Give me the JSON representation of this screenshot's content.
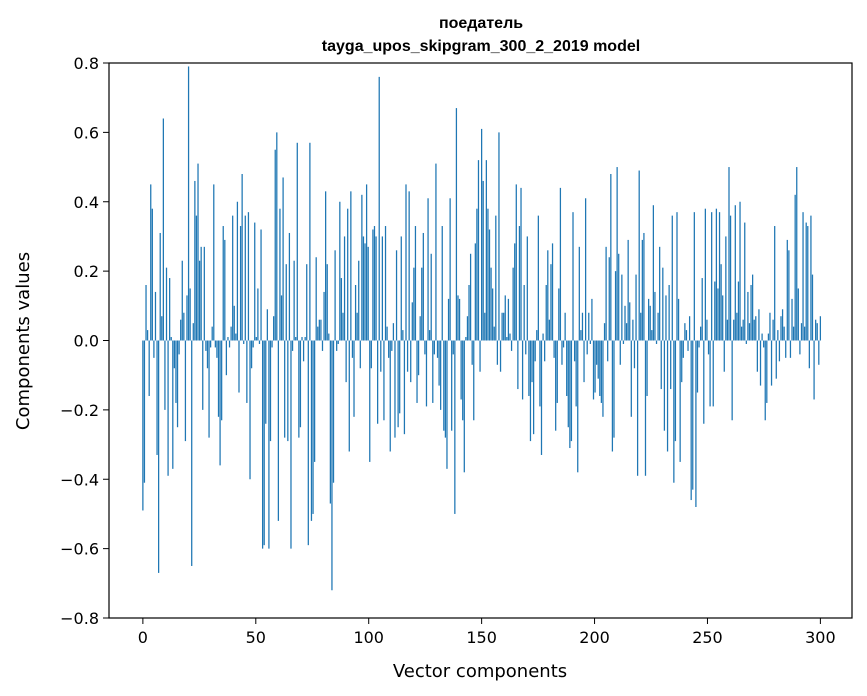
{
  "chart_data": {
    "type": "bar",
    "title": "поедатель",
    "subtitle": "tayga_upos_skipgram_300_2_2019 model",
    "xlabel": "Vector components",
    "ylabel": "Components values",
    "xlim": [
      -15,
      314
    ],
    "ylim": [
      -0.8,
      0.8
    ],
    "x_ticks": [
      0,
      50,
      100,
      150,
      200,
      250,
      300
    ],
    "x_tick_labels": [
      "0",
      "50",
      "100",
      "150",
      "200",
      "250",
      "300"
    ],
    "y_ticks": [
      -0.8,
      -0.6,
      -0.4,
      -0.2,
      0.0,
      0.2,
      0.4,
      0.6,
      0.8
    ],
    "y_tick_labels": [
      "−0.8",
      "−0.6",
      "−0.4",
      "−0.2",
      "0.0",
      "0.2",
      "0.4",
      "0.6",
      "0.8"
    ],
    "bar_color": "#1f77b4",
    "grid": false,
    "values": [
      -0.49,
      -0.41,
      0.16,
      0.03,
      -0.16,
      0.45,
      0.38,
      -0.05,
      0.14,
      -0.33,
      -0.67,
      0.31,
      0.07,
      0.64,
      -0.2,
      0.21,
      -0.39,
      0.18,
      0.01,
      -0.37,
      -0.08,
      -0.18,
      -0.25,
      -0.04,
      0.06,
      0.23,
      0.08,
      -0.29,
      0.13,
      0.79,
      0.15,
      -0.65,
      0.05,
      0.46,
      0.36,
      0.51,
      0.23,
      0.27,
      -0.2,
      0.27,
      -0.03,
      -0.08,
      -0.28,
      -0.02,
      0.04,
      0.45,
      -0.02,
      -0.05,
      -0.22,
      -0.36,
      -0.23,
      0.33,
      0.29,
      -0.1,
      0.01,
      -0.02,
      0.04,
      0.36,
      0.1,
      0.02,
      0.4,
      -0.15,
      0.33,
      0.48,
      -0.01,
      0.36,
      -0.18,
      0.37,
      -0.4,
      -0.08,
      -0.02,
      0.34,
      0.01,
      0.15,
      -0.01,
      0.32,
      -0.6,
      -0.59,
      -0.24,
      0.09,
      -0.6,
      -0.29,
      -0.02,
      0.07,
      0.55,
      0.6,
      -0.52,
      0.38,
      0.13,
      0.47,
      -0.28,
      0.22,
      -0.29,
      0.31,
      -0.6,
      -0.03,
      0.23,
      0.01,
      0.57,
      -0.28,
      -0.25,
      0.01,
      -0.06,
      0.01,
      0.22,
      -0.59,
      0.57,
      -0.52,
      -0.5,
      -0.35,
      0.24,
      0.04,
      0.06,
      0.06,
      -0.03,
      0.14,
      0.43,
      0.22,
      0.02,
      -0.47,
      -0.72,
      -0.41,
      0.26,
      -0.03,
      -0.01,
      0.4,
      0.18,
      0.08,
      0.3,
      -0.12,
      0.38,
      -0.32,
      0.43,
      -0.05,
      -0.22,
      0.16,
      0.08,
      0.23,
      -0.08,
      0.42,
      0.3,
      0.28,
      0.45,
      0.27,
      -0.35,
      -0.08,
      0.32,
      0.33,
      0.3,
      -0.24,
      0.76,
      -0.09,
      0.3,
      -0.23,
      0.33,
      0.04,
      -0.05,
      -0.32,
      -0.03,
      0.05,
      -0.28,
      0.26,
      -0.25,
      -0.21,
      0.3,
      0.03,
      -0.27,
      0.45,
      -0.09,
      0.43,
      -0.12,
      0.11,
      0.21,
      0.33,
      -0.18,
      -0.1,
      0.07,
      0.21,
      0.31,
      -0.04,
      -0.19,
      0.41,
      0.03,
      0.25,
      -0.18,
      -0.04,
      0.51,
      -0.05,
      -0.13,
      -0.2,
      0.33,
      -0.26,
      -0.28,
      -0.37,
      0.12,
      0.41,
      -0.26,
      -0.04,
      -0.5,
      0.67,
      0.13,
      0.12,
      -0.17,
      -0.23,
      -0.38,
      0.01,
      0.07,
      0.16,
      0.25,
      -0.07,
      -0.23,
      0.28,
      0.38,
      0.52,
      -0.09,
      0.61,
      0.46,
      0.08,
      0.52,
      0.38,
      0.32,
      0.21,
      0.15,
      0.04,
      0.36,
      -0.07,
      0.6,
      -0.09,
      0.08,
      0.08,
      0.13,
      0.01,
      0.12,
      0.02,
      -0.03,
      0.21,
      0.28,
      0.45,
      -0.14,
      0.33,
      0.44,
      -0.17,
      0.16,
      -0.04,
      0.3,
      -0.16,
      -0.29,
      -0.12,
      -0.27,
      -0.06,
      0.03,
      0.36,
      -0.19,
      -0.33,
      0.02,
      -0.06,
      0.16,
      0.26,
      0.06,
      0.22,
      0.28,
      -0.05,
      -0.26,
      -0.18,
      0.15,
      0.44,
      -0.07,
      -0.02,
      0.08,
      -0.16,
      -0.25,
      -0.31,
      -0.29,
      0.37,
      -0.06,
      -0.19,
      -0.38,
      0.27,
      0.03,
      0.08,
      -0.12,
      0.41,
      -0.04,
      0.08,
      -0.01,
      0.12,
      -0.17,
      -0.15,
      -0.07,
      -0.11,
      -0.16,
      -0.18,
      -0.22,
      0.05,
      0.27,
      -0.06,
      0.24,
      0.48,
      -0.32,
      -0.28,
      0.2,
      0.5,
      0.25,
      -0.07,
      0.19,
      -0.01,
      0.1,
      0.05,
      0.29,
      0.11,
      -0.22,
      0.06,
      -0.08,
      0.19,
      -0.39,
      0.49,
      0.08,
      0.29,
      0.31,
      -0.39,
      -0.16,
      0.12,
      0.1,
      0.03,
      0.39,
      0.14,
      -0.01,
      0.08,
      0.27,
      -0.14,
      0.21,
      -0.26,
      0.13,
      -0.32,
      0.16,
      -0.14,
      0.36,
      -0.41,
      -0.29,
      0.37,
      0.12,
      -0.35,
      -0.12,
      -0.05,
      0.05,
      0.03,
      -0.03,
      0.07,
      -0.46,
      -0.43,
      0.37,
      -0.48,
      -0.15,
      -0.02,
      0.04,
      0.18,
      -0.24,
      0.38,
      0.06,
      -0.04,
      -0.19,
      0.37,
      -0.19,
      0.17,
      0.38,
      0.15,
      0.37,
      0.22,
      0.13,
      -0.09,
      0.3,
      0.06,
      0.5,
      0.36,
      -0.23,
      0.06,
      0.39,
      0.08,
      0.17,
      0.4,
      0.04,
      0.06,
      0.34,
      -0.01,
      0.14,
      0.05,
      0.16,
      0.19,
      0.06,
      0.07,
      -0.09,
      0.09,
      -0.13,
      0.02,
      -0.02,
      -0.23,
      -0.18,
      0.02,
      0.08,
      -0.13,
      0.06,
      0.33,
      -0.11,
      0.03,
      -0.06,
      0.07,
      0.09,
      0.04,
      -0.05,
      0.29,
      0.26,
      -0.05,
      0.12,
      0.04,
      0.42,
      0.5,
      0.15,
      -0.04,
      0.05,
      0.37,
      0.04,
      0.34,
      0.33,
      -0.08,
      0.36,
      0.19,
      -0.17,
      0.06,
      0.05,
      -0.07,
      0.07
    ]
  }
}
